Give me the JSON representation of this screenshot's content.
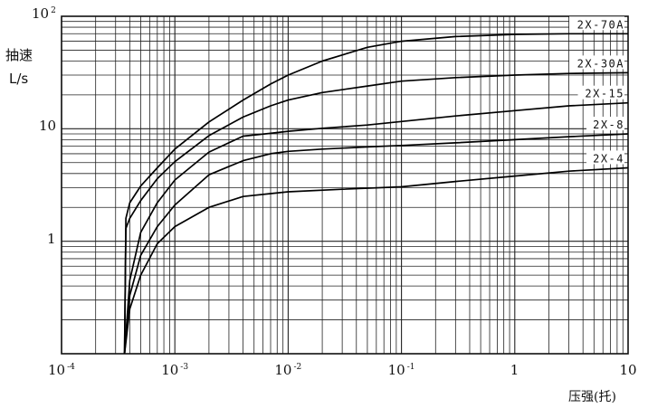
{
  "chart_data": {
    "type": "line",
    "title": "",
    "ylabel_line1": "抽速",
    "ylabel_line2": "L/s",
    "xlabel": "压强(托)",
    "x_scale": "log",
    "y_scale": "log",
    "xlim": [
      0.0001,
      10
    ],
    "ylim": [
      0.1,
      100
    ],
    "grid": true,
    "x_tick_labels": [
      {
        "value": 0.0001,
        "base": "10",
        "exp": "-4"
      },
      {
        "value": 0.001,
        "base": "10",
        "exp": "-3"
      },
      {
        "value": 0.01,
        "base": "10",
        "exp": "-2"
      },
      {
        "value": 0.1,
        "base": "10",
        "exp": "-1"
      },
      {
        "value": 1,
        "base": "1",
        "exp": ""
      },
      {
        "value": 10,
        "base": "10",
        "exp": ""
      }
    ],
    "y_tick_labels": [
      {
        "value": 100,
        "base": "10",
        "exp": "2"
      },
      {
        "value": 10,
        "base": "10",
        "exp": ""
      },
      {
        "value": 1,
        "base": "1",
        "exp": ""
      }
    ],
    "series": [
      {
        "name": "2X-70A",
        "points": [
          [
            0.00036,
            0.1
          ],
          [
            0.00037,
            1.6
          ],
          [
            0.0004,
            2.2
          ],
          [
            0.0005,
            3.1
          ],
          [
            0.0007,
            4.5
          ],
          [
            0.001,
            6.6
          ],
          [
            0.002,
            11.5
          ],
          [
            0.004,
            18
          ],
          [
            0.007,
            25
          ],
          [
            0.01,
            30
          ],
          [
            0.02,
            40
          ],
          [
            0.05,
            53
          ],
          [
            0.1,
            60
          ],
          [
            0.3,
            66
          ],
          [
            1,
            69
          ],
          [
            3,
            70
          ],
          [
            10,
            70
          ]
        ]
      },
      {
        "name": "2X-30A",
        "points": [
          [
            0.00036,
            0.1
          ],
          [
            0.00037,
            1.3
          ],
          [
            0.0004,
            1.6
          ],
          [
            0.0005,
            2.3
          ],
          [
            0.0007,
            3.6
          ],
          [
            0.001,
            5.1
          ],
          [
            0.002,
            8.7
          ],
          [
            0.004,
            12.7
          ],
          [
            0.007,
            16
          ],
          [
            0.01,
            18
          ],
          [
            0.02,
            21
          ],
          [
            0.05,
            24
          ],
          [
            0.1,
            26.5
          ],
          [
            0.3,
            28.5
          ],
          [
            1,
            30
          ],
          [
            3,
            31
          ],
          [
            10,
            31.5
          ]
        ]
      },
      {
        "name": "2X-15",
        "points": [
          [
            0.00036,
            0.1
          ],
          [
            0.0004,
            0.45
          ],
          [
            0.0005,
            1.2
          ],
          [
            0.0007,
            2.2
          ],
          [
            0.001,
            3.5
          ],
          [
            0.002,
            6.2
          ],
          [
            0.004,
            8.6
          ],
          [
            0.007,
            9.1
          ],
          [
            0.01,
            9.5
          ],
          [
            0.02,
            10.1
          ],
          [
            0.05,
            10.8
          ],
          [
            0.1,
            11.6
          ],
          [
            0.3,
            13
          ],
          [
            1,
            14.5
          ],
          [
            3,
            16
          ],
          [
            10,
            17
          ]
        ]
      },
      {
        "name": "2X-8",
        "points": [
          [
            0.00036,
            0.1
          ],
          [
            0.0004,
            0.33
          ],
          [
            0.0005,
            0.75
          ],
          [
            0.0007,
            1.35
          ],
          [
            0.001,
            2.1
          ],
          [
            0.002,
            3.9
          ],
          [
            0.004,
            5.2
          ],
          [
            0.007,
            6
          ],
          [
            0.01,
            6.3
          ],
          [
            0.02,
            6.6
          ],
          [
            0.05,
            6.9
          ],
          [
            0.1,
            7.1
          ],
          [
            0.3,
            7.5
          ],
          [
            1,
            8
          ],
          [
            3,
            8.5
          ],
          [
            10,
            9
          ]
        ]
      },
      {
        "name": "2X-4",
        "points": [
          [
            0.00036,
            0.1
          ],
          [
            0.0004,
            0.25
          ],
          [
            0.0005,
            0.5
          ],
          [
            0.0007,
            0.95
          ],
          [
            0.001,
            1.35
          ],
          [
            0.002,
            2
          ],
          [
            0.004,
            2.5
          ],
          [
            0.007,
            2.65
          ],
          [
            0.01,
            2.75
          ],
          [
            0.03,
            2.9
          ],
          [
            0.1,
            3.05
          ],
          [
            0.3,
            3.4
          ],
          [
            1,
            3.8
          ],
          [
            3,
            4.2
          ],
          [
            10,
            4.5
          ]
        ]
      }
    ]
  }
}
